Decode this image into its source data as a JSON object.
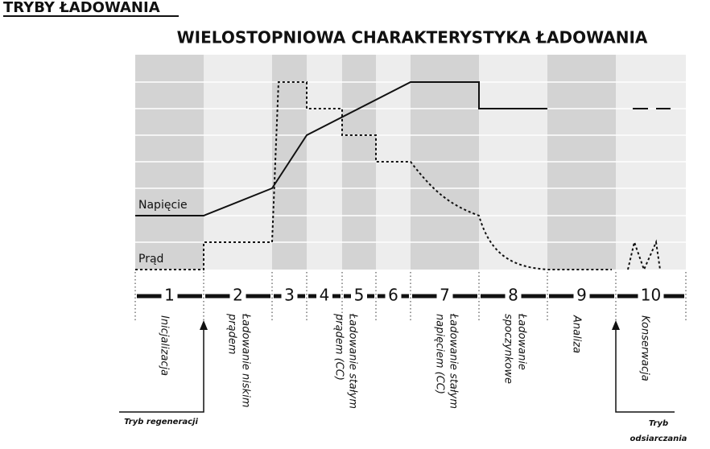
{
  "header": {
    "title": "TRYBY ŁADOWANIA"
  },
  "diagram": {
    "title": "WIELOSTOPNIOWA CHARAKTERYSTYKA ŁADOWANIA",
    "voltage_label": "Napięcie",
    "current_label": "Prąd",
    "stage_numbers": [
      "1",
      "2",
      "3",
      "4",
      "5",
      "6",
      "7",
      "8",
      "9",
      "10"
    ],
    "stage_labels": [
      [
        "Inicjalizacja"
      ],
      [
        "Ładowanie niskim",
        "prądem"
      ],
      [
        "Ładowanie stałym",
        "prądem (CC)"
      ],
      [
        "Ładowanie stałym",
        "napięciem (CC)"
      ],
      [
        "Ładowanie",
        "spoczynkowe"
      ],
      [
        "Analiza"
      ],
      [
        "Konserwacja"
      ]
    ],
    "regeneration_mode": "Tryb regeneracji",
    "desulfation_mode": [
      "Tryb",
      "odsiarczania"
    ]
  }
}
